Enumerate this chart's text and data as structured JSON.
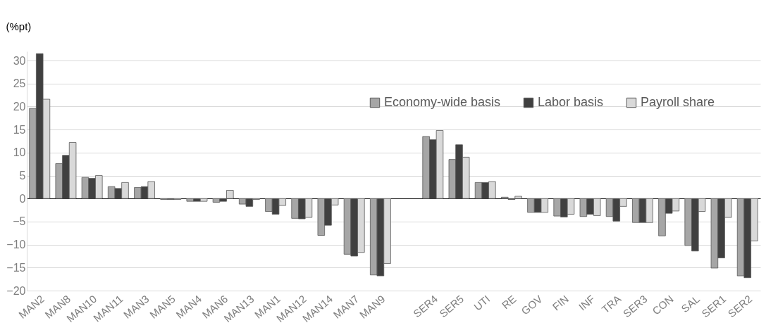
{
  "chart_data": {
    "type": "bar",
    "ylabel": "(%pt)",
    "categories": [
      "MAN2",
      "MAN8",
      "MAN10",
      "MAN11",
      "MAN3",
      "MAN5",
      "MAN4",
      "MAN6",
      "MAN13",
      "MAN1",
      "MAN12",
      "MAN14",
      "MAN7",
      "MAN9",
      null,
      "SER4",
      "SER5",
      "UTI",
      "RE",
      "GOV",
      "FIN",
      "INF",
      "TRA",
      "SER3",
      "CON",
      "SAL",
      "SER1",
      "SER2"
    ],
    "series": [
      {
        "name": "Economy-wide basis",
        "color": "#a6a6a6",
        "values": [
          19.6,
          7.6,
          4.6,
          2.6,
          2.4,
          -0.2,
          -0.6,
          -0.8,
          -1.2,
          -2.8,
          -4.3,
          -8.0,
          -12.1,
          -16.6,
          null,
          13.5,
          8.5,
          3.5,
          0.3,
          -3.0,
          -3.8,
          -3.9,
          -3.9,
          -5.2,
          -8.1,
          -10.2,
          -15.1,
          -16.8
        ]
      },
      {
        "name": "Labor basis",
        "color": "#404040",
        "values": [
          31.5,
          9.4,
          4.4,
          2.2,
          2.6,
          -0.2,
          -0.6,
          -0.6,
          -1.7,
          -3.4,
          -4.4,
          -5.8,
          -12.5,
          -16.8,
          null,
          12.8,
          11.7,
          3.5,
          -0.2,
          -3.0,
          -4.0,
          -3.4,
          -4.9,
          -5.2,
          -3.2,
          -11.4,
          -12.9,
          -17.2
        ]
      },
      {
        "name": "Payroll share",
        "color": "#d9d9d9",
        "values": [
          21.6,
          12.2,
          5.0,
          3.5,
          3.7,
          -0.2,
          -0.6,
          1.8,
          -0.2,
          -1.5,
          -4.1,
          -1.4,
          -11.7,
          -14.1,
          null,
          14.8,
          9.0,
          3.7,
          0.5,
          -3.0,
          -3.4,
          -3.7,
          -1.7,
          -5.2,
          -2.7,
          -2.8,
          -4.1,
          -9.2
        ]
      }
    ],
    "ylim": [
      -20,
      32
    ],
    "yticks": [
      -20,
      -15,
      -10,
      -5,
      0,
      5,
      10,
      15,
      20,
      25,
      30
    ],
    "grid": "y",
    "legend": "top right"
  }
}
